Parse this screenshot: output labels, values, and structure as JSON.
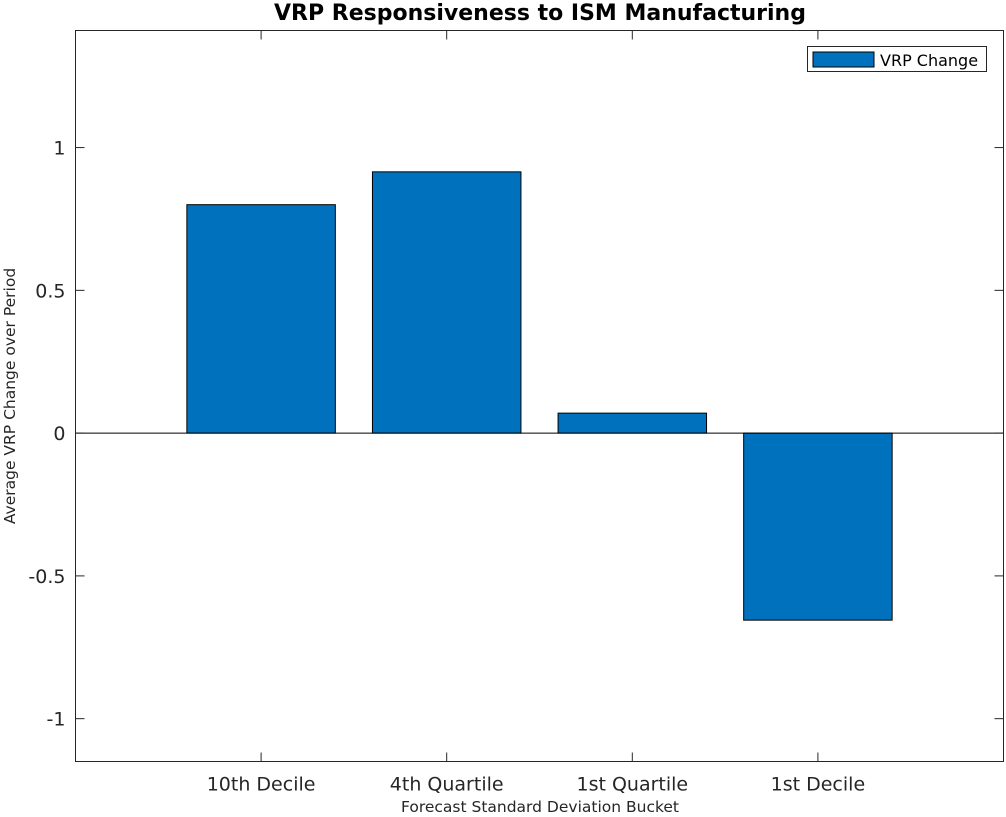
{
  "chart_data": {
    "type": "bar",
    "title": "VRP Responsiveness to ISM Manufacturing",
    "xlabel": "Forecast Standard Deviation Bucket",
    "ylabel": "Average VRP Change over Period",
    "categories": [
      "10th Decile",
      "4th Quartile",
      "1st Quartile",
      "1st Decile"
    ],
    "series": [
      {
        "name": "VRP Change",
        "values": [
          0.8,
          0.915,
          0.07,
          -0.655
        ]
      }
    ],
    "ylim": [
      -1.15,
      1.41
    ],
    "yticks": [
      1,
      0.5,
      0,
      -0.5,
      -1
    ],
    "ytick_labels": [
      "1",
      "0.5",
      "0",
      "-0.5",
      "-1"
    ],
    "xlim": [
      0,
      5
    ],
    "bar_color": "#0072BD",
    "grid": false,
    "legend_position": "top-right"
  }
}
